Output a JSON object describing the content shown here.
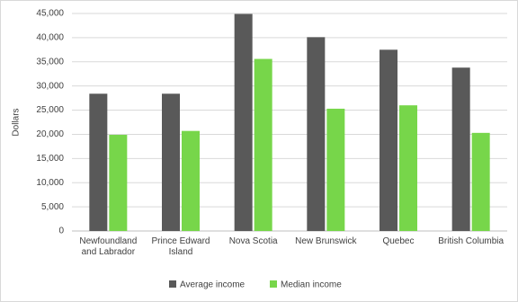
{
  "chart_data": {
    "type": "bar",
    "y_label": "Dollars",
    "categories": [
      "Newfoundland and Labrador",
      "Prince Edward Island",
      "Nova Scotia",
      "New Brunswick",
      "Quebec",
      "British Columbia"
    ],
    "series": [
      {
        "name": "Average income",
        "color": "#595959",
        "values": [
          28400,
          28400,
          44900,
          40100,
          37500,
          33800
        ]
      },
      {
        "name": "Median income",
        "color": "#77d64a",
        "values": [
          19900,
          20700,
          35600,
          25300,
          26000,
          20300
        ]
      }
    ],
    "ylim": [
      0,
      45000
    ],
    "yticks": [
      0,
      {
        "value": 5000,
        "label": "5,000"
      },
      {
        "value": 10000,
        "label": "10,000"
      },
      {
        "value": 15000,
        "label": "15,000"
      },
      {
        "value": 20000,
        "label": "20,000"
      },
      {
        "value": 25000,
        "label": "25,000"
      },
      {
        "value": 30000,
        "label": "30,000"
      },
      {
        "value": 35000,
        "label": "35,000"
      },
      {
        "value": 40000,
        "label": "40,000"
      },
      {
        "value": 45000,
        "label": "45,000"
      }
    ],
    "grid": true,
    "legend": "bottom"
  }
}
